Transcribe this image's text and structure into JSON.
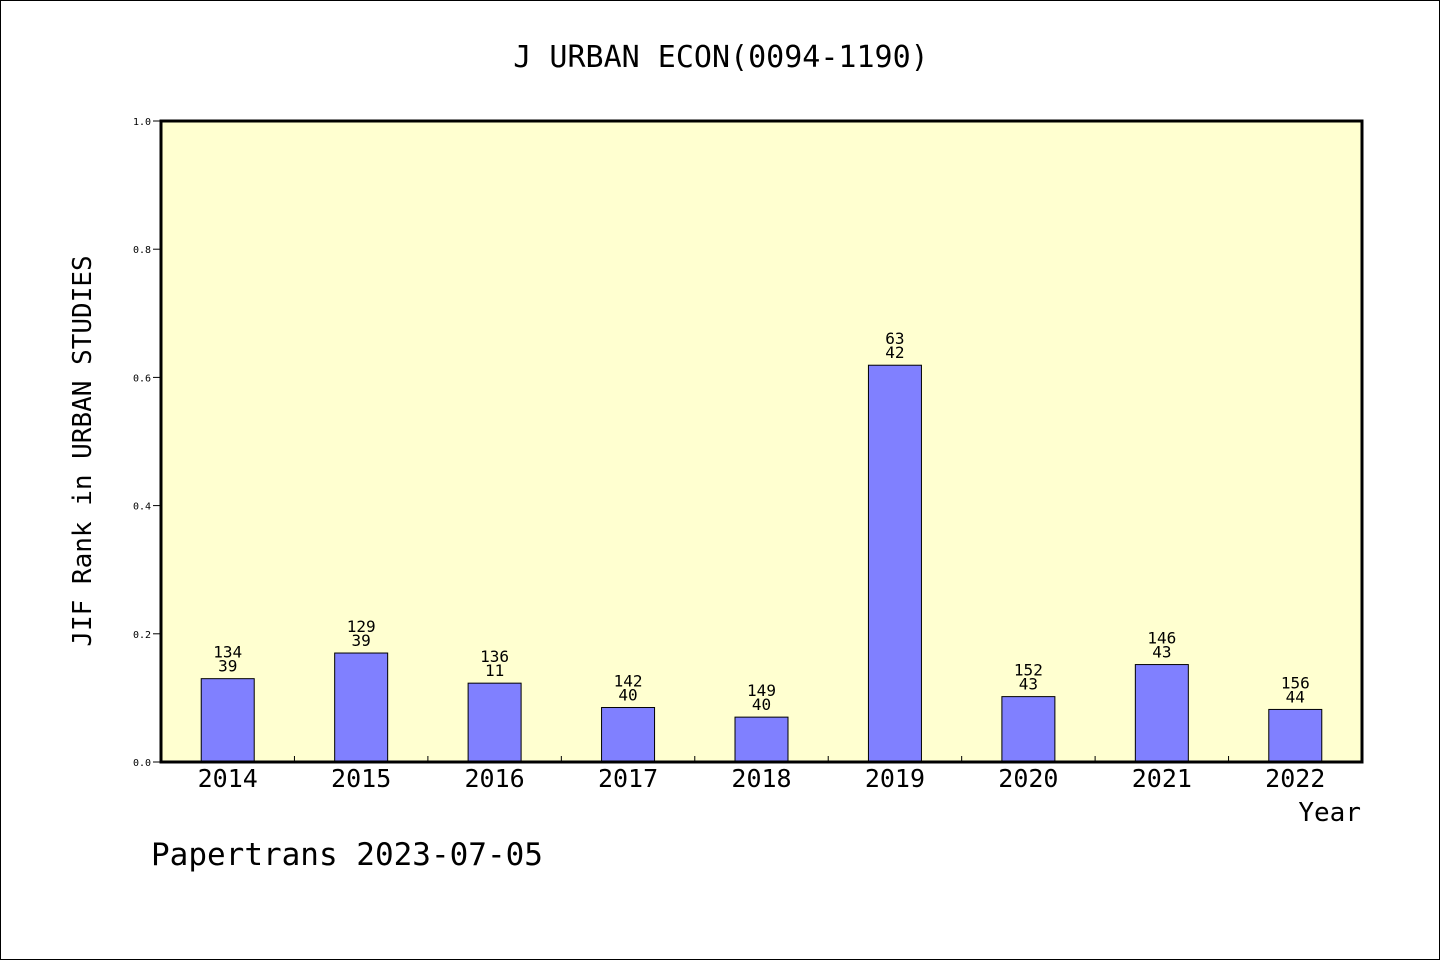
{
  "chart_data": {
    "type": "bar",
    "title": "J URBAN ECON(0094-1190)",
    "xlabel": "Year",
    "ylabel": "JIF Rank in URBAN STUDIES",
    "ylim": [
      0,
      1.0
    ],
    "yticks": [
      "0.0",
      "0.2",
      "0.4",
      "0.6",
      "0.8",
      "1.0"
    ],
    "categories": [
      "2014",
      "2015",
      "2016",
      "2017",
      "2018",
      "2019",
      "2020",
      "2021",
      "2022"
    ],
    "values": [
      0.13,
      0.17,
      0.123,
      0.085,
      0.07,
      0.619,
      0.102,
      0.152,
      0.082
    ],
    "labels_top": [
      "134",
      "129",
      "136",
      "142",
      "149",
      "63",
      "152",
      "146",
      "156"
    ],
    "labels_bottom": [
      "39",
      "39",
      "11",
      "40",
      "40",
      "42",
      "43",
      "43",
      "44"
    ],
    "colors": {
      "plot_background": "#ffffd0",
      "bar_fill": "#8080ff",
      "bar_stroke": "#000000"
    },
    "grid": false,
    "legend": "none"
  },
  "footer": {
    "credit": "Papertrans 2023-07-05"
  }
}
